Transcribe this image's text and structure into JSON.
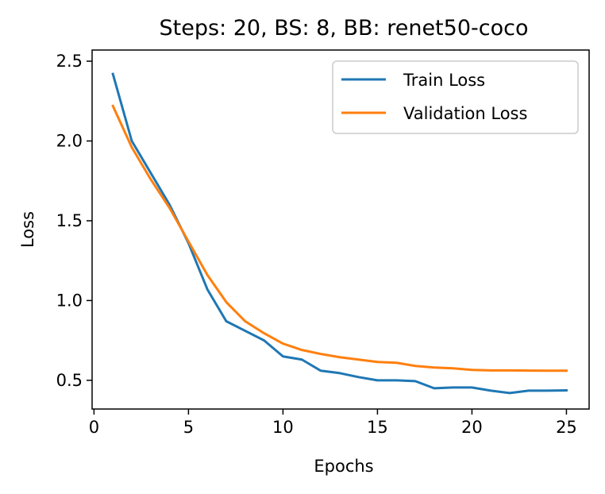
{
  "chart_data": {
    "type": "line",
    "title": "Steps: 20, BS: 8, BB: renet50-coco",
    "xlabel": "Epochs",
    "ylabel": "Loss",
    "xlim": [
      -0.1,
      26.2
    ],
    "ylim": [
      0.32,
      2.57
    ],
    "xticks": [
      0,
      5,
      10,
      15,
      20,
      25
    ],
    "xtick_labels": [
      "0",
      "5",
      "10",
      "15",
      "20",
      "25"
    ],
    "yticks": [
      0.5,
      1.0,
      1.5,
      2.0,
      2.5
    ],
    "ytick_labels": [
      "0.5",
      "1.0",
      "1.5",
      "2.0",
      "2.5"
    ],
    "grid": false,
    "legend_position": "top-right",
    "x": [
      1,
      2,
      3,
      4,
      5,
      6,
      7,
      8,
      9,
      10,
      11,
      12,
      13,
      14,
      15,
      16,
      17,
      18,
      19,
      20,
      21,
      22,
      23,
      24,
      25
    ],
    "series": [
      {
        "name": "Train Loss",
        "color": "#1f77b4",
        "values": [
          2.42,
          2.0,
          1.8,
          1.6,
          1.36,
          1.07,
          0.87,
          0.81,
          0.75,
          0.65,
          0.63,
          0.56,
          0.545,
          0.52,
          0.5,
          0.5,
          0.495,
          0.45,
          0.455,
          0.455,
          0.435,
          0.42,
          0.435,
          0.435,
          0.437
        ]
      },
      {
        "name": "Validation Loss",
        "color": "#ff7f0e",
        "values": [
          2.22,
          1.96,
          1.76,
          1.58,
          1.37,
          1.16,
          0.99,
          0.87,
          0.795,
          0.73,
          0.69,
          0.665,
          0.645,
          0.63,
          0.615,
          0.61,
          0.59,
          0.58,
          0.575,
          0.565,
          0.562,
          0.562,
          0.561,
          0.56,
          0.56
        ]
      }
    ]
  }
}
